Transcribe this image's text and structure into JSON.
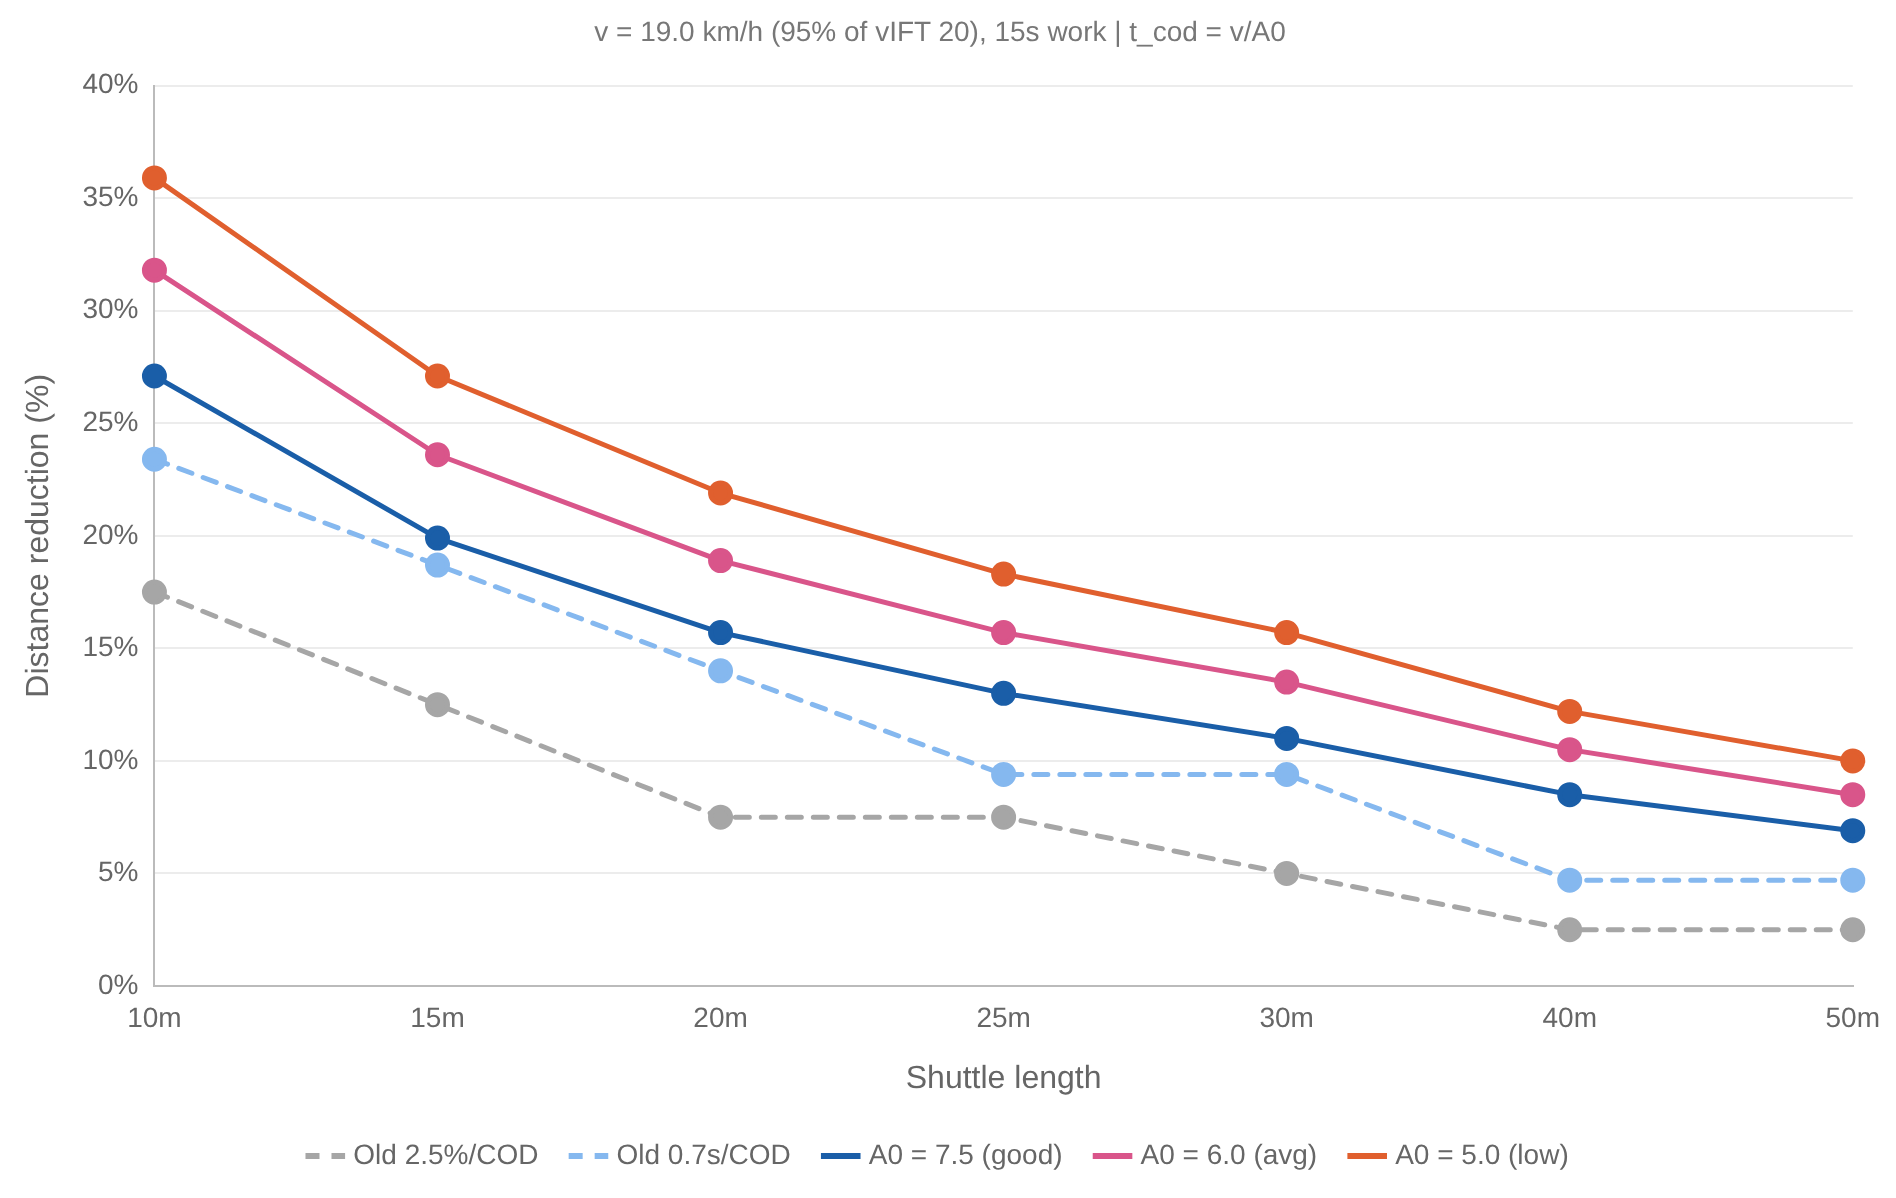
{
  "chart_data": {
    "type": "line",
    "title": "v = 19.0 km/h (95% of vIFT 20), 15s work | t_cod = v/A0",
    "xlabel": "Shuttle length",
    "ylabel": "Distance reduction (%)",
    "categories": [
      "10m",
      "15m",
      "20m",
      "25m",
      "30m",
      "40m",
      "50m"
    ],
    "series": [
      {
        "name": "Old 2.5%/COD",
        "color": "#a6a6a6",
        "line_style": "dashed",
        "values": [
          17.5,
          12.5,
          7.5,
          7.5,
          5.0,
          2.5,
          2.5
        ]
      },
      {
        "name": "Old 0.7s/COD",
        "color": "#85b8ef",
        "line_style": "dashed",
        "values": [
          23.4,
          18.7,
          14.0,
          9.4,
          9.4,
          4.7,
          4.7
        ]
      },
      {
        "name": "A0 = 7.5 (good)",
        "color": "#1a5ea8",
        "values": [
          27.1,
          19.9,
          15.7,
          13.0,
          11.0,
          8.5,
          6.9
        ]
      },
      {
        "name": "A0 = 6.0 (avg)",
        "color": "#d9558a",
        "values": [
          31.8,
          23.6,
          18.9,
          15.7,
          13.5,
          10.5,
          8.5
        ]
      },
      {
        "name": "A0 = 5.0 (low)",
        "color": "#e05f2e",
        "values": [
          35.9,
          27.1,
          21.9,
          18.3,
          15.7,
          12.2,
          10.0
        ]
      }
    ],
    "ylim": [
      0,
      40
    ],
    "yticks": [
      {
        "value": 0,
        "label": "0%"
      },
      {
        "value": 5,
        "label": "5%"
      },
      {
        "value": 10,
        "label": "10%"
      },
      {
        "value": 15,
        "label": "15%"
      },
      {
        "value": 20,
        "label": "20%"
      },
      {
        "value": 25,
        "label": "25%"
      },
      {
        "value": 30,
        "label": "30%"
      },
      {
        "value": 35,
        "label": "35%"
      },
      {
        "value": 40,
        "label": "40%"
      }
    ],
    "grid": "y",
    "legend": "bottom",
    "marker": "circle",
    "line_style": "solid"
  }
}
